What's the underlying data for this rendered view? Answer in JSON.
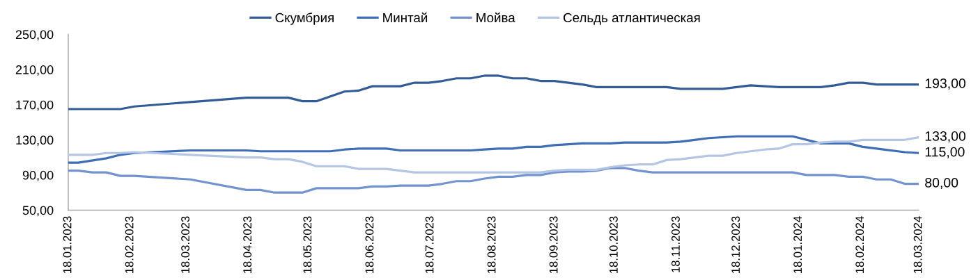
{
  "chart_data": {
    "type": "line",
    "xlim": [
      "2023-01-18",
      "2024-03-18"
    ],
    "xticks": [
      {
        "value": "2023-01-18",
        "label": "18.01.2023"
      },
      {
        "value": "2023-02-18",
        "label": "18.02.2023"
      },
      {
        "value": "2023-03-18",
        "label": "18.03.2023"
      },
      {
        "value": "2023-04-18",
        "label": "18.04.2023"
      },
      {
        "value": "2023-05-18",
        "label": "18.05.2023"
      },
      {
        "value": "2023-06-18",
        "label": "18.06.2023"
      },
      {
        "value": "2023-07-18",
        "label": "18.07.2023"
      },
      {
        "value": "2023-08-18",
        "label": "18.08.2023"
      },
      {
        "value": "2023-09-18",
        "label": "18.09.2023"
      },
      {
        "value": "2023-10-18",
        "label": "18.10.2023"
      },
      {
        "value": "2023-11-18",
        "label": "18.11.2023"
      },
      {
        "value": "2023-12-18",
        "label": "18.12.2023"
      },
      {
        "value": "2024-01-18",
        "label": "18.01.2024"
      },
      {
        "value": "2024-02-18",
        "label": "18.02.2024"
      },
      {
        "value": "2024-03-18",
        "label": "18.03.2024"
      }
    ],
    "ylim": [
      50,
      250
    ],
    "yticks": [
      {
        "value": 50,
        "label": "50,00"
      },
      {
        "value": 90,
        "label": "90,00"
      },
      {
        "value": 130,
        "label": "130,00"
      },
      {
        "value": 170,
        "label": "170,00"
      },
      {
        "value": 210,
        "label": "210,00"
      },
      {
        "value": 250,
        "label": "250,00"
      }
    ],
    "legend": "top",
    "series": [
      {
        "name": "Скумбрия",
        "color": "#335c96",
        "x": [
          "2023-01-18",
          "2023-02-13",
          "2023-02-20",
          "2023-04-17",
          "2023-05-08",
          "2023-05-15",
          "2023-05-22",
          "2023-06-05",
          "2023-06-12",
          "2023-06-19",
          "2023-07-03",
          "2023-07-10",
          "2023-07-17",
          "2023-07-24",
          "2023-07-31",
          "2023-08-07",
          "2023-08-14",
          "2023-08-21",
          "2023-08-28",
          "2023-09-04",
          "2023-09-11",
          "2023-09-18",
          "2023-09-25",
          "2023-10-02",
          "2023-10-09",
          "2023-11-13",
          "2023-11-20",
          "2023-12-11",
          "2023-12-18",
          "2023-12-25",
          "2024-01-08",
          "2024-01-29",
          "2024-02-05",
          "2024-02-12",
          "2024-02-19",
          "2024-02-26",
          "2024-03-18"
        ],
        "values": [
          165,
          165,
          168,
          178,
          178,
          174,
          174,
          185,
          186,
          191,
          191,
          195,
          195,
          197,
          200,
          200,
          203,
          203,
          200,
          200,
          197,
          197,
          195,
          193,
          190,
          190,
          188,
          188,
          190,
          192,
          190,
          190,
          192,
          195,
          195,
          193,
          193
        ],
        "value_labels": [
          null,
          null,
          null,
          null,
          null,
          null,
          null,
          null,
          null,
          null,
          null,
          null,
          null,
          null,
          null,
          null,
          null,
          null,
          null,
          null,
          null,
          null,
          null,
          null,
          null,
          null,
          null,
          null,
          null,
          null,
          null,
          null,
          null,
          null,
          null,
          null,
          "193,00"
        ]
      },
      {
        "name": "Минтай",
        "color": "#3f6eb5",
        "x": [
          "2023-01-18",
          "2023-01-23",
          "2023-02-06",
          "2023-02-13",
          "2023-02-20",
          "2023-03-20",
          "2023-04-17",
          "2023-04-24",
          "2023-05-29",
          "2023-06-05",
          "2023-06-12",
          "2023-06-26",
          "2023-07-03",
          "2023-08-07",
          "2023-08-14",
          "2023-08-21",
          "2023-08-28",
          "2023-09-04",
          "2023-09-11",
          "2023-09-18",
          "2023-09-25",
          "2023-10-02",
          "2023-10-16",
          "2023-10-23",
          "2023-11-13",
          "2023-11-20",
          "2023-11-27",
          "2023-12-04",
          "2023-12-11",
          "2023-12-18",
          "2024-01-15",
          "2024-01-22",
          "2024-01-29",
          "2024-02-12",
          "2024-02-19",
          "2024-02-26",
          "2024-03-11",
          "2024-03-18"
        ],
        "values": [
          104,
          104,
          109,
          113,
          115,
          118,
          118,
          117,
          117,
          119,
          120,
          120,
          118,
          118,
          119,
          120,
          120,
          122,
          122,
          124,
          125,
          126,
          126,
          127,
          127,
          128,
          130,
          132,
          133,
          134,
          134,
          130,
          126,
          126,
          122,
          120,
          116,
          115
        ],
        "value_labels": [
          null,
          null,
          null,
          null,
          null,
          null,
          null,
          null,
          null,
          null,
          null,
          null,
          null,
          null,
          null,
          null,
          null,
          null,
          null,
          null,
          null,
          null,
          null,
          null,
          null,
          null,
          null,
          null,
          null,
          null,
          null,
          null,
          null,
          null,
          null,
          null,
          null,
          "115,00"
        ]
      },
      {
        "name": "Мойва",
        "color": "#7393cf",
        "x": [
          "2023-01-18",
          "2023-01-23",
          "2023-01-30",
          "2023-02-06",
          "2023-02-13",
          "2023-02-20",
          "2023-03-20",
          "2023-04-17",
          "2023-04-24",
          "2023-05-01",
          "2023-05-15",
          "2023-05-22",
          "2023-06-12",
          "2023-06-19",
          "2023-06-26",
          "2023-07-03",
          "2023-07-17",
          "2023-07-24",
          "2023-07-31",
          "2023-08-07",
          "2023-08-14",
          "2023-08-21",
          "2023-08-28",
          "2023-09-04",
          "2023-09-11",
          "2023-09-18",
          "2023-09-25",
          "2023-10-02",
          "2023-10-09",
          "2023-10-16",
          "2023-10-23",
          "2023-10-30",
          "2023-11-06",
          "2024-01-15",
          "2024-01-22",
          "2024-02-05",
          "2024-02-12",
          "2024-02-19",
          "2024-02-26",
          "2024-03-04",
          "2024-03-11",
          "2024-03-18"
        ],
        "values": [
          95,
          95,
          93,
          93,
          89,
          89,
          85,
          73,
          73,
          70,
          70,
          75,
          75,
          77,
          77,
          78,
          78,
          80,
          83,
          83,
          86,
          88,
          88,
          90,
          90,
          93,
          94,
          94,
          95,
          98,
          98,
          95,
          93,
          93,
          90,
          90,
          88,
          88,
          85,
          85,
          80,
          80
        ],
        "value_labels": [
          null,
          null,
          null,
          null,
          null,
          null,
          null,
          null,
          null,
          null,
          null,
          null,
          null,
          null,
          null,
          null,
          null,
          null,
          null,
          null,
          null,
          null,
          null,
          null,
          null,
          null,
          null,
          null,
          null,
          null,
          null,
          null,
          null,
          null,
          null,
          null,
          null,
          null,
          null,
          null,
          null,
          "80,00"
        ]
      },
      {
        "name": "Сельдь атлантическая",
        "color": "#b4c6e4",
        "x": [
          "2023-01-18",
          "2023-01-30",
          "2023-02-06",
          "2023-02-13",
          "2023-02-20",
          "2023-03-20",
          "2023-04-17",
          "2023-04-24",
          "2023-05-01",
          "2023-05-08",
          "2023-05-15",
          "2023-05-22",
          "2023-06-05",
          "2023-06-12",
          "2023-06-26",
          "2023-07-03",
          "2023-07-10",
          "2023-09-11",
          "2023-09-18",
          "2023-09-25",
          "2023-10-09",
          "2023-10-16",
          "2023-10-23",
          "2023-10-30",
          "2023-11-06",
          "2023-11-13",
          "2023-11-20",
          "2023-11-27",
          "2023-12-04",
          "2023-12-11",
          "2023-12-18",
          "2023-12-25",
          "2024-01-01",
          "2024-01-08",
          "2024-01-15",
          "2024-01-22",
          "2024-01-29",
          "2024-02-05",
          "2024-02-12",
          "2024-02-19",
          "2024-03-11",
          "2024-03-18"
        ],
        "values": [
          113,
          113,
          115,
          115,
          116,
          113,
          110,
          110,
          108,
          108,
          105,
          100,
          100,
          97,
          97,
          95,
          93,
          93,
          95,
          96,
          96,
          99,
          101,
          102,
          102,
          107,
          108,
          110,
          112,
          112,
          115,
          117,
          119,
          120,
          125,
          125,
          127,
          128,
          128,
          130,
          130,
          133
        ],
        "value_labels": [
          null,
          null,
          null,
          null,
          null,
          null,
          null,
          null,
          null,
          null,
          null,
          null,
          null,
          null,
          null,
          null,
          null,
          null,
          null,
          null,
          null,
          null,
          null,
          null,
          null,
          null,
          null,
          null,
          null,
          null,
          null,
          null,
          null,
          null,
          null,
          null,
          null,
          null,
          null,
          null,
          null,
          "133,00"
        ]
      }
    ]
  }
}
